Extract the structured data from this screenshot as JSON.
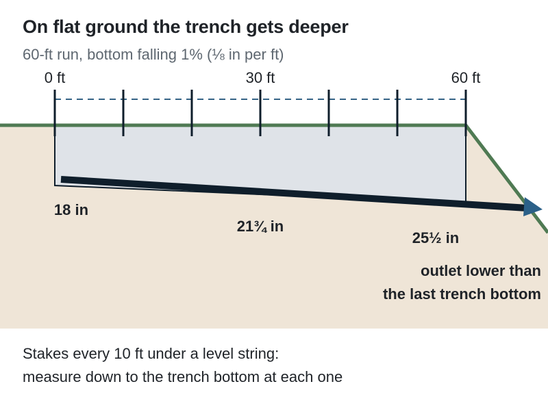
{
  "title": "On flat ground the trench gets deeper",
  "subtitle": "60-ft run, bottom falling 1% (⅛ in per ft)",
  "axis": {
    "tick_labels": [
      "0 ft",
      "30 ft",
      "60 ft"
    ],
    "stake_positions_ft": [
      0,
      10,
      20,
      30,
      40,
      50,
      60
    ]
  },
  "depths": [
    {
      "position_ft": 0,
      "label": "18 in"
    },
    {
      "position_ft": 30,
      "label": "21¾ in"
    },
    {
      "position_ft": 60,
      "label": "25½ in"
    }
  ],
  "outlet_note": [
    "outlet lower than",
    "the last trench bottom"
  ],
  "footer": [
    "Stakes every 10 ft under a level string:",
    "measure down to the trench bottom at each one"
  ],
  "colors": {
    "ground_fill": "#efe5d7",
    "ground_line": "#4f7a53",
    "trench_fill": "#dfe3e8",
    "trench_outline": "#0f1e2b",
    "level_string": "#356386",
    "pipe": "#0f1e2b",
    "flow_arrow": "#2b6088"
  }
}
